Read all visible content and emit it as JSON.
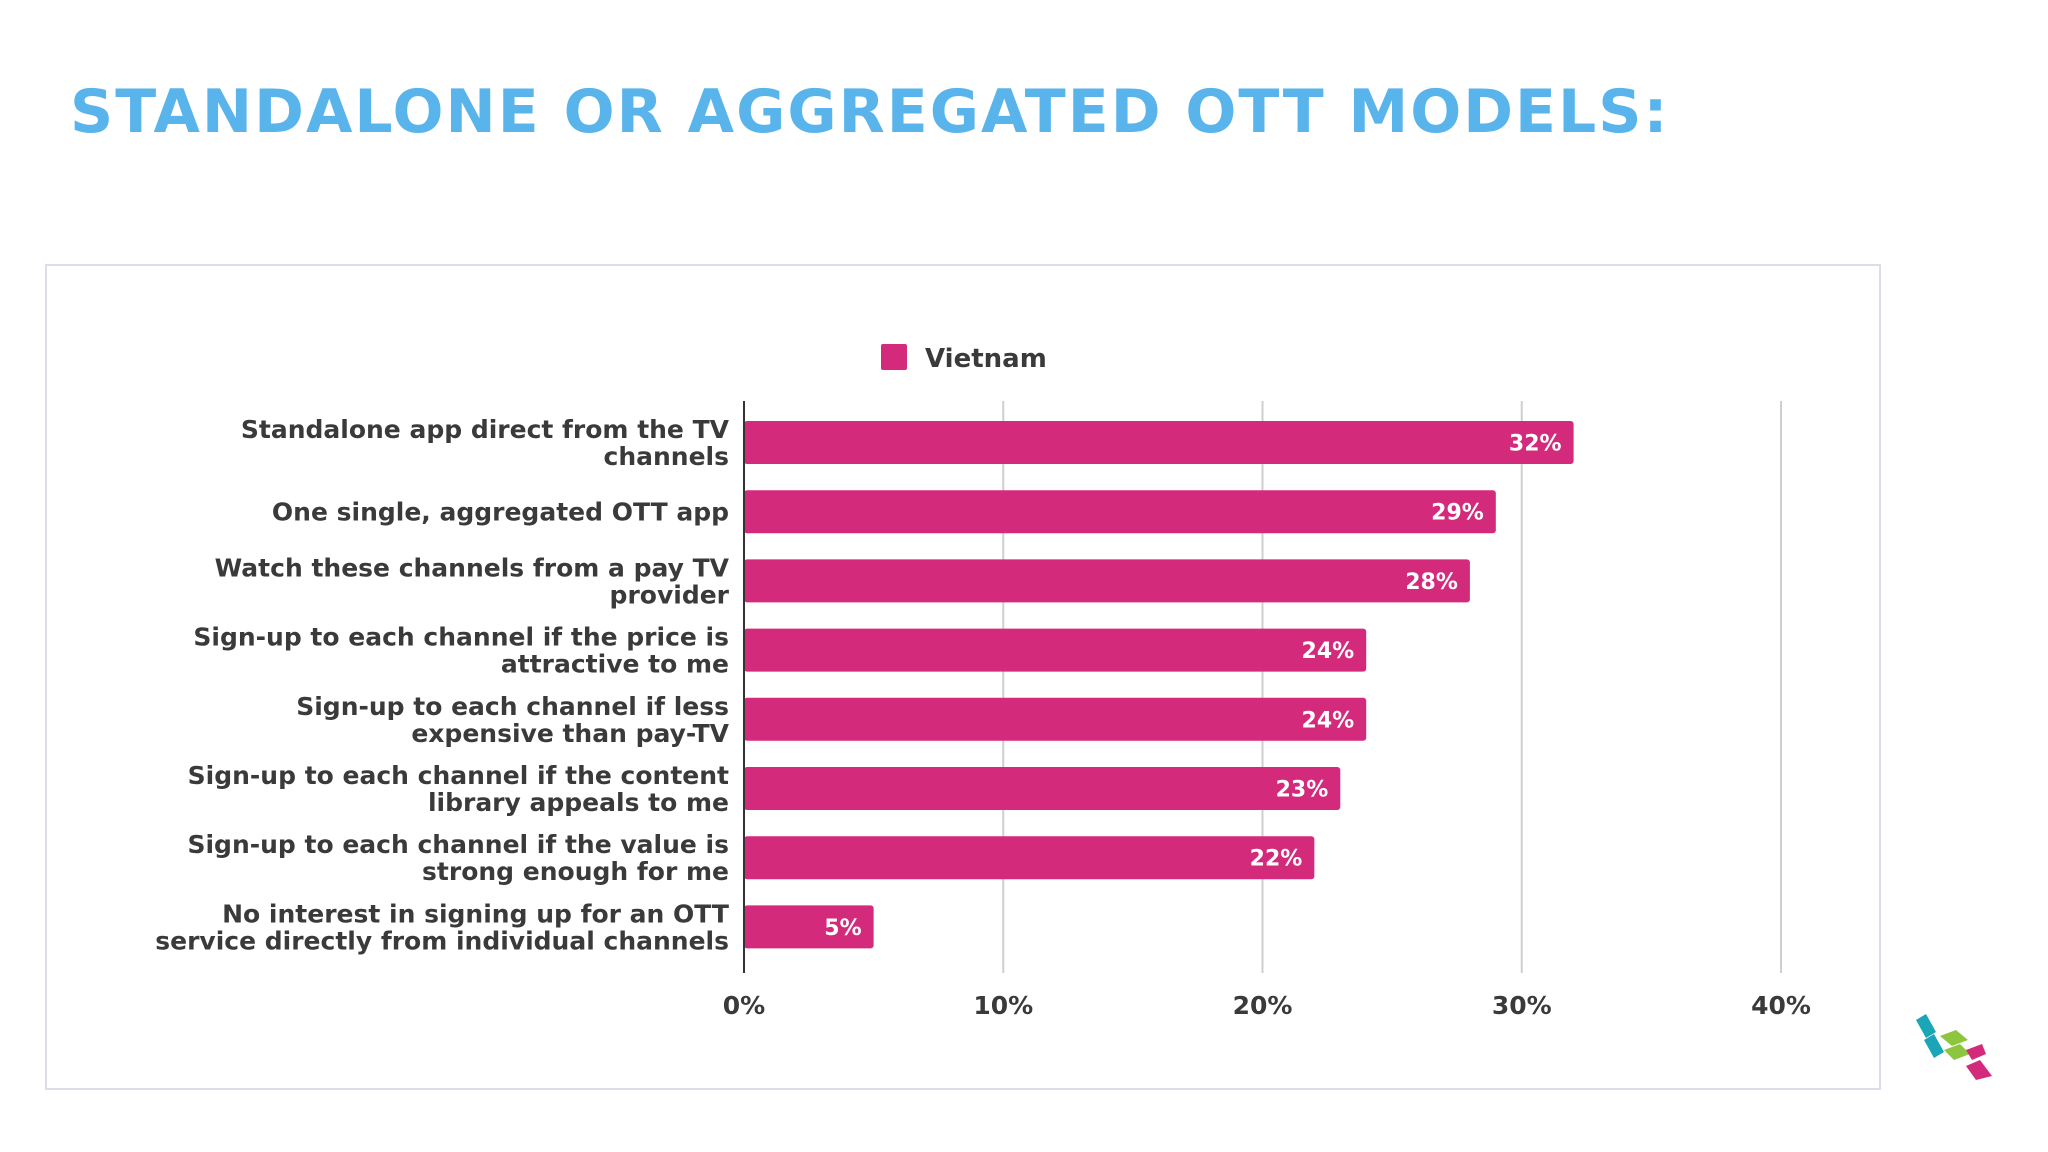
{
  "page": {
    "title": "STANDALONE OR AGGREGATED OTT MODELS:"
  },
  "colors": {
    "title": "#5ab4ec",
    "bar": "#d42a7b",
    "grid": "#cfcfcf",
    "axis": "#333333",
    "logo_teal": "#1aa6b7",
    "logo_green": "#8cc63f",
    "logo_pink": "#d42a7b"
  },
  "logo": {
    "icon": "cube-logo-icon"
  },
  "chart_data": {
    "type": "bar",
    "orientation": "horizontal",
    "categories": [
      [
        "Standalone app direct from the TV",
        "channels"
      ],
      [
        "One single, aggregated OTT app"
      ],
      [
        "Watch these channels from a pay TV",
        "provider"
      ],
      [
        "Sign-up to each channel if the price is",
        "attractive to me"
      ],
      [
        "Sign-up to each channel if less",
        "expensive than pay-TV"
      ],
      [
        "Sign-up to each channel if the content",
        "library appeals to me"
      ],
      [
        "Sign-up to each channel if the value is",
        "strong enough for me"
      ],
      [
        "No interest in signing up for an OTT",
        "service directly from individual channels"
      ]
    ],
    "series": [
      {
        "name": "Vietnam",
        "color": "#d42a7b",
        "values": [
          32,
          29,
          28,
          24,
          24,
          23,
          22,
          5
        ],
        "labels": [
          "32%",
          "29%",
          "28%",
          "24%",
          "24%",
          "23%",
          "22%",
          "5%"
        ]
      }
    ],
    "xlim": [
      0,
      40
    ],
    "xticks": [
      0,
      10,
      20,
      30,
      40
    ],
    "xtick_labels": [
      "0%",
      "10%",
      "20%",
      "30%",
      "40%"
    ],
    "grid": true,
    "legend": "top-center"
  }
}
